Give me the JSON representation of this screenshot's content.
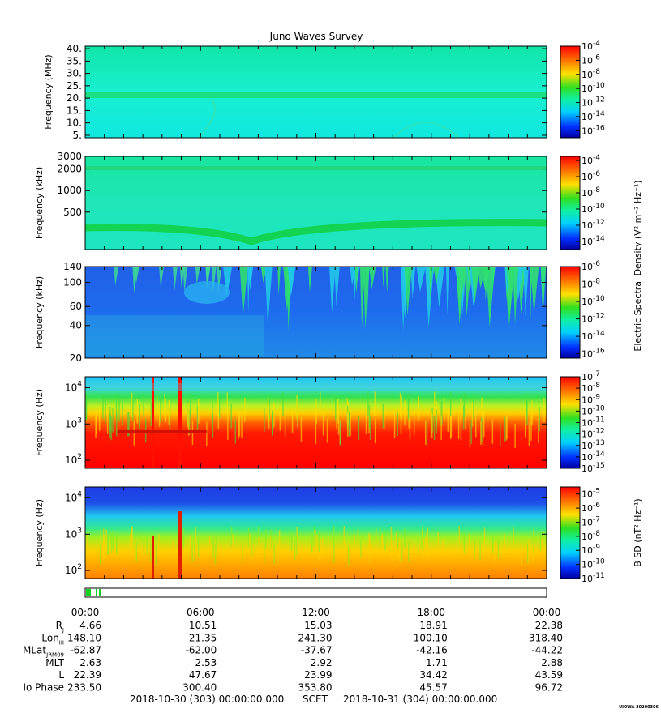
{
  "title": "Juno Waves Survey",
  "footer": {
    "start": "2018-10-30 (303) 00:00:00.000",
    "scet": "SCET",
    "end": "2018-10-31 (304) 00:00:00.000",
    "credit": "UIOWA 20200306"
  },
  "shared_colorbar_label": "Electric Spectral Density (V² m⁻² Hz⁻¹)",
  "chart_data": [
    {
      "type": "heatmap",
      "panel": "hfwbr",
      "ylabel": "Frequency (MHz)",
      "yscale": "linear",
      "ylim": [
        4,
        41
      ],
      "yticks": [
        "40.",
        "35.",
        "30.",
        "25.",
        "20.",
        "15.",
        "10.",
        "5."
      ],
      "ytick_values": [
        40,
        35,
        30,
        25,
        20,
        15,
        10,
        5
      ],
      "colorbar_ticks": [
        "-4",
        "-6",
        "-8",
        "-10",
        "-12",
        "-14",
        "-16"
      ],
      "colorbar_range": [
        -17,
        -4
      ],
      "colors": [
        "#10e6c8",
        "#1cf0d8",
        "#18e080"
      ]
    },
    {
      "type": "heatmap",
      "panel": "hfwbr-khz",
      "ylabel": "Frequency (kHz)",
      "yscale": "log",
      "ylim": [
        150,
        3000
      ],
      "yticks": [
        "3000",
        "2000",
        "1000",
        "500"
      ],
      "ytick_values": [
        3000,
        2000,
        1000,
        500
      ],
      "colorbar_ticks": [
        "-4",
        "-6",
        "-8",
        "-10",
        "-12",
        "-14"
      ],
      "colorbar_range": [
        -15,
        -3.5
      ],
      "colors": [
        "#20e6b4",
        "#18e08c",
        "#10d050"
      ]
    },
    {
      "type": "heatmap",
      "panel": "lfr-khz",
      "ylabel": "Frequency (kHz)",
      "yscale": "log",
      "ylim": [
        20,
        140
      ],
      "yticks": [
        "140",
        "100",
        "60",
        "40",
        "20"
      ],
      "ytick_values": [
        140,
        100,
        60,
        40,
        20
      ],
      "colorbar_ticks": [
        "-6",
        "-8",
        "-10",
        "-12",
        "-14",
        "-16"
      ],
      "colorbar_range": [
        -16.5,
        -6
      ],
      "colors": [
        "#1a5ae6",
        "#20c8f0",
        "#2ce060"
      ]
    },
    {
      "type": "heatmap",
      "panel": "lfr-e",
      "ylabel": "Frequency (Hz)",
      "yscale": "log",
      "ylim": [
        60,
        20000
      ],
      "yticks": [
        "4",
        "3",
        "2"
      ],
      "ytick_values": [
        10000,
        1000,
        100
      ],
      "colorbar_ticks": [
        "-7",
        "-8",
        "-9",
        "-10",
        "-11",
        "-12",
        "-13",
        "-14",
        "-15"
      ],
      "colorbar_range": [
        -15,
        -7
      ],
      "colors": [
        "#10c8ff",
        "#30f050",
        "#ffd000",
        "#ff2010"
      ]
    },
    {
      "type": "heatmap",
      "panel": "lfr-b",
      "ylabel": "Frequency (Hz)",
      "yscale": "log",
      "ylim": [
        60,
        20000
      ],
      "yticks": [
        "4",
        "3",
        "2"
      ],
      "ytick_values": [
        10000,
        1000,
        100
      ],
      "colorbar_label": "B SD (nT² Hz⁻¹)",
      "colorbar_ticks": [
        "-5",
        "-6",
        "-7",
        "-8",
        "-9",
        "-10",
        "-11"
      ],
      "colorbar_range": [
        -11,
        -4.5
      ],
      "colors": [
        "#1e40e8",
        "#20e0f0",
        "#40f040",
        "#ffb000"
      ]
    }
  ],
  "time_axis": {
    "ticks": [
      "00:00",
      "06:00",
      "12:00",
      "18:00",
      "00:00"
    ],
    "tick_hours": [
      0,
      6,
      12,
      18,
      24
    ],
    "range_hours": [
      0,
      24
    ]
  },
  "ephemeris": [
    {
      "label": "R",
      "sub": "J",
      "values": [
        "4.66",
        "10.51",
        "15.03",
        "18.91",
        "22.38"
      ]
    },
    {
      "label": "Lon",
      "sub": "III",
      "values": [
        "148.10",
        "21.35",
        "241.30",
        "100.10",
        "318.40"
      ]
    },
    {
      "label": "MLat",
      "sub": "JRM09",
      "values": [
        "-62.87",
        "-62.00",
        "-37.67",
        "-42.16",
        "-44.22"
      ]
    },
    {
      "label": "MLT",
      "sub": "",
      "values": [
        "2.63",
        "2.53",
        "2.92",
        "1.71",
        "2.88"
      ]
    },
    {
      "label": "L",
      "sub": "",
      "values": [
        "22.39",
        "47.67",
        "23.99",
        "34.42",
        "43.59"
      ]
    },
    {
      "label": "Io Phase",
      "sub": "",
      "values": [
        "233.50",
        "300.40",
        "353.80",
        "45.57",
        "96.72"
      ]
    }
  ]
}
